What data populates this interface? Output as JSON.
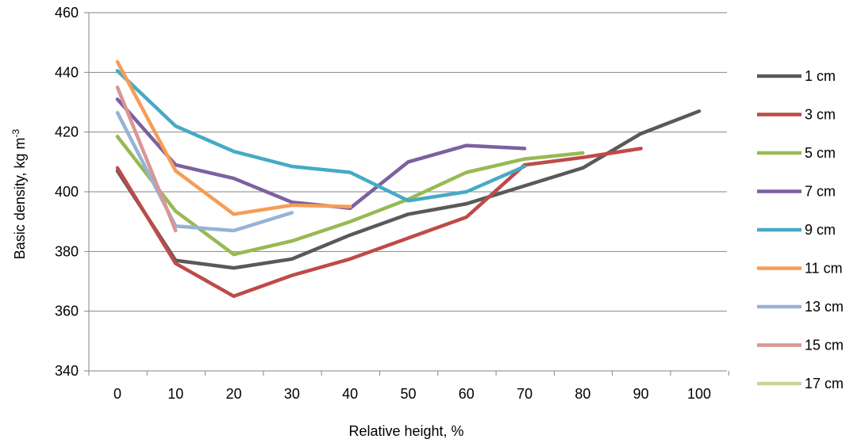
{
  "chart_data": {
    "type": "line",
    "xlabel": "Relative height, %",
    "ylabel_main": "Basic density, kg m",
    "ylabel_sup": "-3",
    "x": [
      0,
      10,
      20,
      30,
      40,
      50,
      60,
      70,
      80,
      90,
      100
    ],
    "x_tick_labels": [
      "0",
      "10",
      "20",
      "30",
      "40",
      "50",
      "60",
      "70",
      "80",
      "90",
      "100"
    ],
    "y_ticks": [
      340,
      360,
      380,
      400,
      420,
      440,
      460
    ],
    "ylim": [
      340,
      460
    ],
    "grid": "horizontal",
    "legend_position": "right",
    "series": [
      {
        "name": "1 cm",
        "color": "#595959",
        "x": [
          0,
          10,
          20,
          30,
          40,
          50,
          60,
          70,
          80,
          90,
          100
        ],
        "values": [
          407,
          377,
          374.5,
          377.5,
          385.5,
          392.5,
          396,
          402,
          408,
          419.5,
          427
        ]
      },
      {
        "name": "3 cm",
        "color": "#be4b48",
        "x": [
          0,
          10,
          20,
          30,
          40,
          50,
          60,
          70,
          80,
          90
        ],
        "values": [
          408,
          376,
          365,
          372,
          377.5,
          384.5,
          391.5,
          409,
          411.5,
          414.5
        ]
      },
      {
        "name": "5 cm",
        "color": "#98b954",
        "x": [
          0,
          10,
          20,
          30,
          40,
          50,
          60,
          70,
          80
        ],
        "values": [
          418.5,
          393.5,
          379,
          383.5,
          390,
          397.5,
          406.5,
          411,
          413
        ]
      },
      {
        "name": "7 cm",
        "color": "#7d60a0",
        "x": [
          0,
          10,
          20,
          30,
          40,
          50,
          60,
          70
        ],
        "values": [
          431,
          409,
          404.5,
          396.5,
          394.5,
          410,
          415.5,
          414.5
        ]
      },
      {
        "name": "9 cm",
        "color": "#46aac5",
        "x": [
          0,
          10,
          20,
          30,
          40,
          50,
          60,
          70
        ],
        "values": [
          440.5,
          422,
          413.5,
          408.5,
          406.5,
          397,
          400,
          408.5
        ]
      },
      {
        "name": "11 cm",
        "color": "#f59d56",
        "x": [
          0,
          10,
          20,
          30,
          40
        ],
        "values": [
          443.5,
          407,
          392.5,
          395.5,
          395
        ]
      },
      {
        "name": "13 cm",
        "color": "#95b3d7",
        "x": [
          0,
          10,
          20,
          30
        ],
        "values": [
          426.5,
          388.5,
          387,
          393
        ]
      },
      {
        "name": "15 cm",
        "color": "#d99694",
        "x": [
          0,
          10
        ],
        "values": [
          435,
          387
        ]
      },
      {
        "name": "17 cm",
        "color": "#c3d69b",
        "x": [],
        "values": []
      }
    ]
  }
}
